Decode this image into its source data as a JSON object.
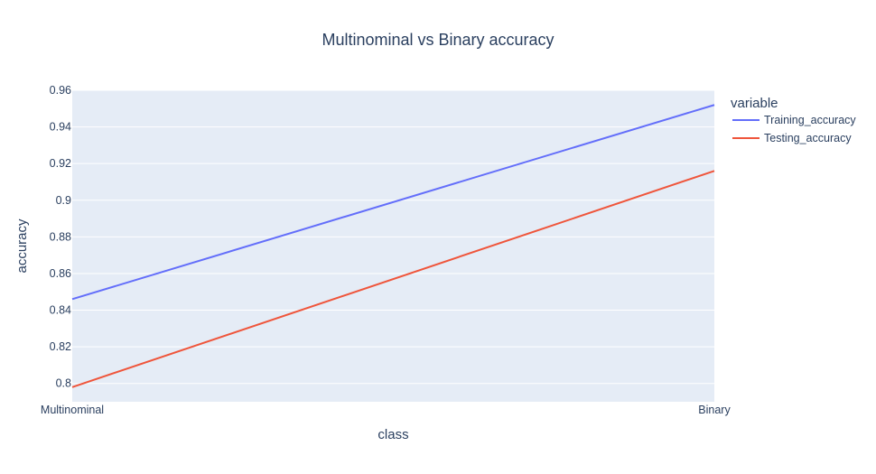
{
  "chart_data": {
    "type": "line",
    "title": "Multinominal vs Binary accuracy",
    "xlabel": "class",
    "ylabel": "accuracy",
    "categories": [
      "Multinominal",
      "Binary"
    ],
    "series": [
      {
        "name": "Training_accuracy",
        "color": "#636efa",
        "values": [
          0.846,
          0.952
        ]
      },
      {
        "name": "Testing_accuracy",
        "color": "#ef553b",
        "values": [
          0.798,
          0.916
        ]
      }
    ],
    "ylim": [
      0.79,
      0.96
    ],
    "yticks": [
      0.8,
      0.82,
      0.84,
      0.86,
      0.88,
      0.9,
      0.92,
      0.94,
      0.96
    ],
    "ytick_labels": [
      "0.8",
      "0.82",
      "0.84",
      "0.86",
      "0.88",
      "0.9",
      "0.92",
      "0.94",
      "0.96"
    ],
    "legend": {
      "title": "variable",
      "position": "top-right"
    },
    "grid": true,
    "colors": {
      "plot_background": "#e5ecf6",
      "gridline": "#ffffff",
      "text": "#2a3f5f"
    }
  }
}
